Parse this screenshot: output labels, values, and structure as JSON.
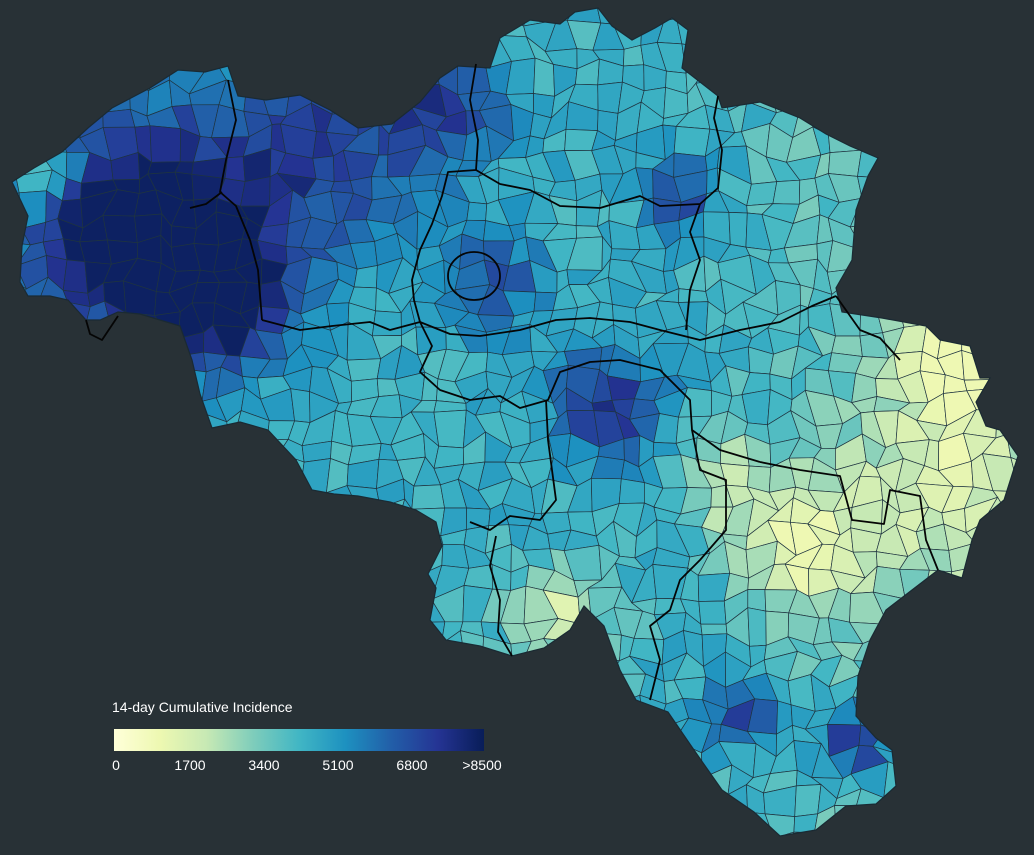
{
  "legend": {
    "title": "14-day Cumulative Incidence",
    "ticks": [
      "0",
      "1700",
      "3400",
      "5100",
      "6800",
      ">8500"
    ],
    "scale_max": 8500
  },
  "colors": {
    "background": "#283136",
    "scale": [
      "#ffffd9",
      "#edf8b1",
      "#c7e9b4",
      "#7fcdbb",
      "#41b6c4",
      "#1d91c0",
      "#225ea8",
      "#253494",
      "#081d58"
    ]
  }
}
